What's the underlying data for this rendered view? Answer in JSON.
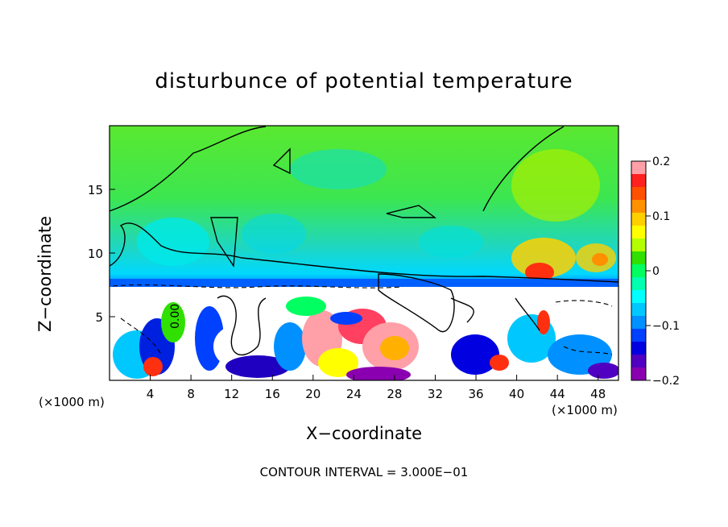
{
  "chart_data": {
    "type": "heatmap",
    "title": "disturbunce of potential temperature",
    "xlabel": "X−coordinate",
    "ylabel": "Z−coordinate",
    "x_unit_left": "(×1000 m)",
    "x_unit_right": "(×1000 m)",
    "xlim": [
      0,
      50
    ],
    "ylim": [
      0,
      20
    ],
    "x_ticks": [
      4,
      8,
      12,
      16,
      20,
      24,
      28,
      32,
      36,
      40,
      44,
      48
    ],
    "y_ticks": [
      5,
      10,
      15
    ],
    "colorbar": {
      "ticks": [
        "0.2",
        "0.1",
        "0",
        "−0.1",
        "−0.2"
      ],
      "range": [
        -0.2,
        0.2
      ],
      "colors": [
        "#ff9fa8",
        "#ff2020",
        "#ff5000",
        "#ff9000",
        "#ffd000",
        "#ffff00",
        "#b4ff00",
        "#30e000",
        "#00ff60",
        "#00ffb0",
        "#00ffff",
        "#00c8ff",
        "#0090ff",
        "#0040ff",
        "#0000e0",
        "#5000c0",
        "#8a00b0"
      ]
    },
    "annotation": "CONTOUR INTERVAL = 3.000E−01",
    "contour_label": "0.00",
    "layers": {
      "upper_field": "mostly near 0 (green) above z≈7.3 km with cyan/blue band just above the layer interface",
      "lower_field": "strong mixed positive and negative disturbances below z≈7 km"
    }
  }
}
